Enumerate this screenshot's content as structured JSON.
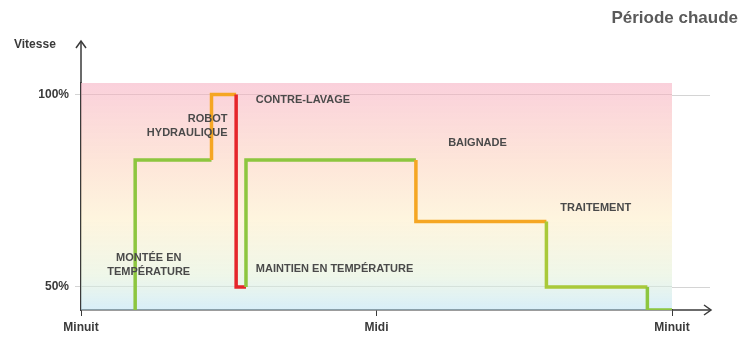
{
  "chart_data": {
    "type": "line",
    "title": "Période chaude",
    "y_label": "Vitesse",
    "line_style": "steps",
    "x": [
      2.2,
      2.2,
      5.3,
      6.3,
      6.7,
      13.6,
      18.9,
      23,
      24
    ],
    "values": [
      44,
      50,
      83,
      100,
      50,
      83,
      67,
      50,
      44
    ],
    "colors": [
      "#8dc63f",
      "#8dc63f",
      "#f5a623",
      "#e5262b",
      "#8dc63f",
      "#f5a623",
      "#a9c93a",
      "#8dc63f",
      "#8dc63f"
    ],
    "xlim": [
      0,
      24
    ],
    "xticks": [
      {
        "value": 0,
        "label": "Minuit"
      },
      {
        "value": 12,
        "label": "Midi"
      },
      {
        "value": 24,
        "label": "Minuit"
      }
    ],
    "ylim": [
      44,
      103
    ],
    "yticks": [
      {
        "value": 50,
        "label": "50%"
      },
      {
        "value": 100,
        "label": "100%"
      }
    ],
    "grid": true,
    "annotations": [
      {
        "text": [
          "MONTÉE EN",
          "TEMPÉRATURE"
        ]
      },
      {
        "text": [
          "ROBOT",
          "HYDRAULIQUE"
        ]
      },
      {
        "text": [
          "CONTRE-LAVAGE"
        ]
      },
      {
        "text": [
          "MAINTIEN EN TEMPÉRATURE"
        ]
      },
      {
        "text": [
          "BAIGNADE"
        ]
      },
      {
        "text": [
          "TRAITEMENT"
        ]
      }
    ]
  }
}
